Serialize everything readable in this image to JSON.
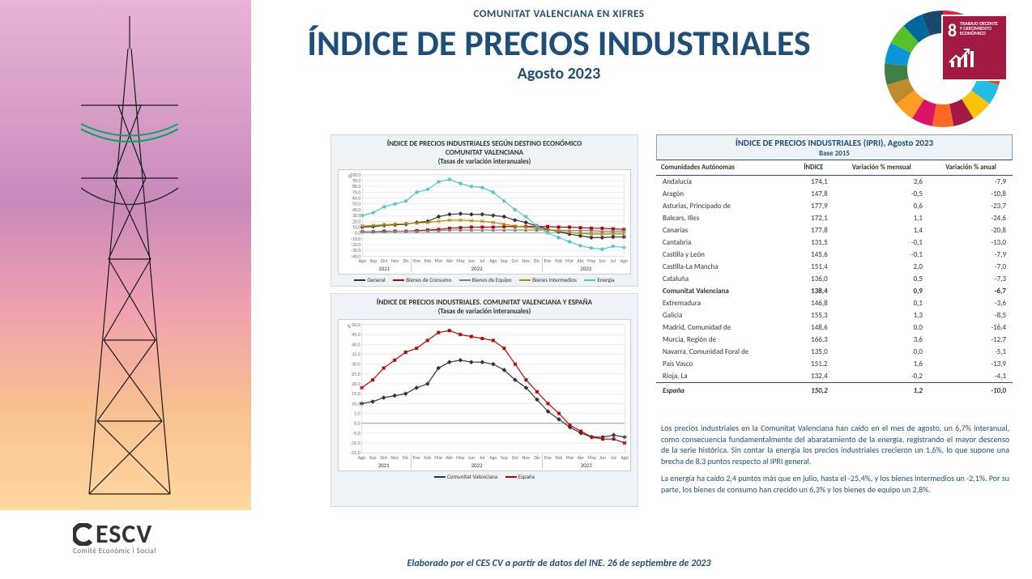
{
  "header": {
    "eyebrow": "COMUNITAT VALENCIANA EN XIFRES",
    "title": "ÍNDICE DE PRECIOS INDUSTRIALES",
    "subtitle": "Agosto 2023"
  },
  "sdg": {
    "number": "8",
    "label": "TRABAJO DECENTE Y CRECIMIENTO ECONÓMICO",
    "badge_bg": "#a21942",
    "wheel_colors": [
      "#e5243b",
      "#dda63a",
      "#4c9f38",
      "#c5192d",
      "#ff3a21",
      "#26bde2",
      "#fcc30b",
      "#a21942",
      "#fd6925",
      "#dd1367",
      "#fd9d24",
      "#bf8b2e",
      "#3f7e44",
      "#0a97d9",
      "#56c02b",
      "#00689d",
      "#19486a"
    ]
  },
  "chart1": {
    "title_line1": "ÍNDICE DE PRECIOS INDUSTRIALES SEGÚN DESTINO ECONÓMICO",
    "title_line2": "COMUNITAT VALENCIANA",
    "title_line3": "(Tasas de variación interanuales)",
    "y_label": "%",
    "ylim": [
      -40,
      100
    ],
    "ytick_step": 10,
    "x_labels": [
      "Ago",
      "Sep",
      "Oct",
      "Nov",
      "Dic",
      "Ene",
      "Feb",
      "Mar",
      "Abr",
      "May",
      "Jun",
      "Jul",
      "Ago",
      "Sep",
      "Oct",
      "Nov",
      "Dic",
      "Ene",
      "Feb",
      "Mar",
      "Abr",
      "May",
      "Jun",
      "Jul",
      "Ago"
    ],
    "year_spans": [
      {
        "label": "2021",
        "from": 0,
        "to": 4
      },
      {
        "label": "2022",
        "from": 5,
        "to": 16
      },
      {
        "label": "2023",
        "from": 17,
        "to": 24
      }
    ],
    "series": [
      {
        "name": "General",
        "color": "#333333",
        "marker": "diamond",
        "values": [
          10,
          11,
          13,
          14,
          15,
          18,
          20,
          28,
          32,
          33,
          32,
          32,
          30,
          28,
          22,
          18,
          12,
          6,
          2,
          -2,
          -5,
          -8,
          -8,
          -7,
          -7
        ]
      },
      {
        "name": "Bienes de Consumo",
        "color": "#c00000",
        "marker": "square",
        "values": [
          2,
          2,
          3,
          3,
          3,
          4,
          5,
          6,
          8,
          9,
          10,
          10,
          10,
          11,
          11,
          11,
          11,
          11,
          10,
          10,
          9,
          8,
          8,
          7,
          6
        ]
      },
      {
        "name": "Bienes de Equipo",
        "color": "#7f7f7f",
        "marker": "triangle",
        "values": [
          2,
          2,
          2,
          3,
          3,
          3,
          4,
          4,
          5,
          5,
          5,
          5,
          5,
          5,
          5,
          5,
          5,
          5,
          5,
          4,
          4,
          4,
          3,
          3,
          3
        ]
      },
      {
        "name": "Bienes Intermedios",
        "color": "#b58a00",
        "marker": "x",
        "values": [
          12,
          13,
          14,
          15,
          16,
          17,
          18,
          20,
          22,
          22,
          21,
          20,
          18,
          15,
          12,
          10,
          8,
          5,
          3,
          1,
          -1,
          -2,
          -2,
          -2,
          -2
        ]
      },
      {
        "name": "Energía",
        "color": "#4fc4cf",
        "marker": "star",
        "values": [
          30,
          35,
          45,
          50,
          55,
          70,
          75,
          88,
          92,
          85,
          80,
          78,
          70,
          55,
          40,
          28,
          12,
          0,
          -8,
          -15,
          -22,
          -26,
          -28,
          -23,
          -25
        ]
      }
    ],
    "grid_color": "#dddddd",
    "zero_line_color": "#999999",
    "background_color": "#ffffff"
  },
  "chart2": {
    "title_line1": "ÍNDICE DE PRECIOS INDUSTRIALES. COMUNITAT VALENCIANA Y ESPAÑA",
    "title_line2": "(Tasas de variación interanuales)",
    "y_label": "%",
    "ylim": [
      -15,
      50
    ],
    "ytick_step": 5,
    "x_labels": [
      "Ago",
      "Sep",
      "Oct",
      "Nov",
      "Dic",
      "Ene",
      "Feb",
      "Mar",
      "Abr",
      "May",
      "Jun",
      "Jul",
      "Ago",
      "Sep",
      "Oct",
      "Nov",
      "Dic",
      "Ene",
      "Feb",
      "Mar",
      "Abr",
      "May",
      "Jun",
      "Jul",
      "Ago"
    ],
    "year_spans": [
      {
        "label": "2021",
        "from": 0,
        "to": 4
      },
      {
        "label": "2022",
        "from": 5,
        "to": 16
      },
      {
        "label": "2023",
        "from": 17,
        "to": 24
      }
    ],
    "series": [
      {
        "name": "Comunitat Valenciana",
        "color": "#333333",
        "marker": "diamond",
        "values": [
          10,
          11,
          13,
          14,
          15,
          18,
          20,
          28,
          31,
          32,
          31,
          31,
          30,
          27,
          22,
          18,
          12,
          6,
          2,
          -2,
          -5,
          -7,
          -7,
          -6,
          -7
        ]
      },
      {
        "name": "España",
        "color": "#c00000",
        "marker": "square",
        "values": [
          18,
          22,
          28,
          32,
          36,
          38,
          42,
          46,
          47,
          45,
          44,
          43,
          42,
          38,
          30,
          22,
          16,
          10,
          5,
          -1,
          -4,
          -7,
          -8,
          -8,
          -10
        ]
      }
    ],
    "grid_color": "#dddddd",
    "zero_line_color": "#999999",
    "background_color": "#ffffff"
  },
  "table": {
    "title": "ÍNDICE DE PRECIOS INDUSTRIALES (IPRI), Agosto 2023",
    "base": "Base 2015",
    "columns": [
      "Comunidades Autónomas",
      "ÍNDICE",
      "Variación % mensual",
      "Variación % anual"
    ],
    "highlight_row": 9,
    "rows": [
      [
        "Andalucía",
        "174,1",
        "3,6",
        "-7,9"
      ],
      [
        "Aragón",
        "147,8",
        "-0,5",
        "-10,8"
      ],
      [
        "Asturias, Principado de",
        "177,9",
        "0,6",
        "-23,7"
      ],
      [
        "Balears, Illes",
        "172,1",
        "1,1",
        "-24,6"
      ],
      [
        "Canarias",
        "177,8",
        "1,4",
        "-20,8"
      ],
      [
        "Cantabria",
        "131,5",
        "-0,1",
        "-13,0"
      ],
      [
        "Castilla y León",
        "145,6",
        "-0,1",
        "-7,9"
      ],
      [
        "Castilla-La Mancha",
        "151,4",
        "2,0",
        "-7,0"
      ],
      [
        "Cataluña",
        "136,0",
        "0,5",
        "-7,3"
      ],
      [
        "Comunitat Valenciana",
        "138,4",
        "0,9",
        "-6,7"
      ],
      [
        "Extremadura",
        "146,8",
        "0,1",
        "-3,6"
      ],
      [
        "Galicia",
        "155,3",
        "1,3",
        "-8,5"
      ],
      [
        "Madrid, Comunidad de",
        "148,6",
        "0,0",
        "-16,4"
      ],
      [
        "Murcia, Región de",
        "166,3",
        "3,6",
        "-12,7"
      ],
      [
        "Navarra, Comunidad Foral de",
        "135,0",
        "0,0",
        "-5,1"
      ],
      [
        "País Vasco",
        "151,2",
        "1,6",
        "-13,9"
      ],
      [
        "Rioja, La",
        "132,4",
        "-0,2",
        "-4,1"
      ]
    ],
    "total": [
      "España",
      "150,2",
      "1,2",
      "-10,0"
    ]
  },
  "body": {
    "p1": "Los precios industriales en la Comunitat Valenciana han caído en el mes de agosto, un 6,7% interanual, como consecuencia fundamentalmente del abaratamiento de la energía, registrando el mayor descenso de la serie histórica. Sin contar la energía los precios industriales crecieron un 1,6%, lo que supone una brecha de 8,3 puntos respecto al IPRI general.",
    "p2": "La energía ha caído 2,4 puntos más que en julio, hasta el -25,4%, y los bienes intermedios un -2,1%. Por su parte, los bienes de consumo han crecido un 6,3% y los bienes de equipo un 2,8%."
  },
  "footer": {
    "credit": "Elaborado por el CES CV a partir de datos del INE. 26 de septiembre de 2023"
  },
  "logo": {
    "main_prefix": "C",
    "main_text": "ESCV",
    "sub": "Comité Econòmic i Social"
  }
}
